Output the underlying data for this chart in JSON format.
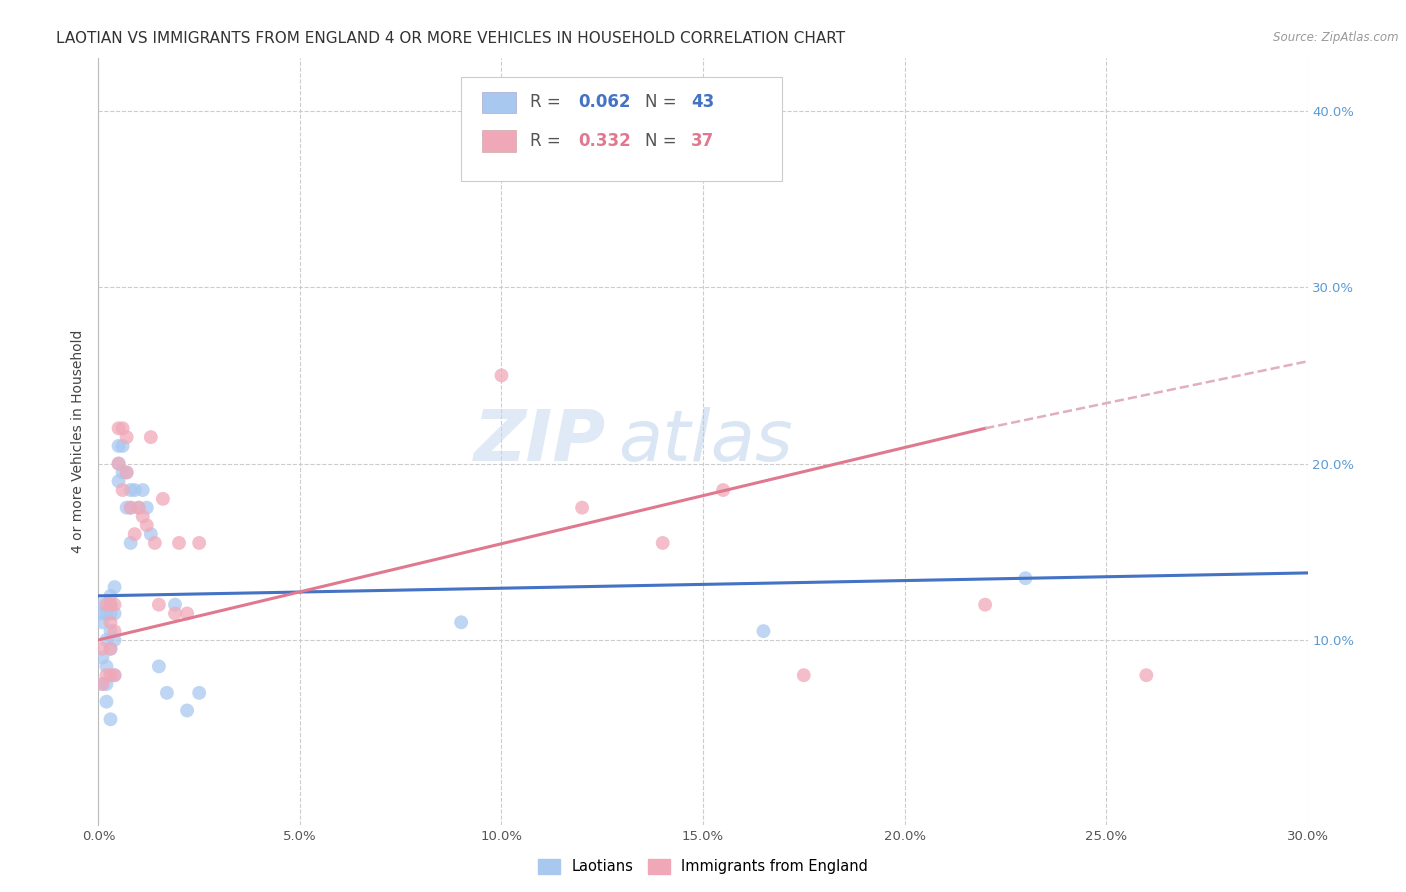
{
  "title": "LAOTIAN VS IMMIGRANTS FROM ENGLAND 4 OR MORE VEHICLES IN HOUSEHOLD CORRELATION CHART",
  "source": "Source: ZipAtlas.com",
  "ylabel": "4 or more Vehicles in Household",
  "xlim": [
    0.0,
    0.3
  ],
  "ylim": [
    -0.005,
    0.43
  ],
  "xticks": [
    0.0,
    0.05,
    0.1,
    0.15,
    0.2,
    0.25,
    0.3
  ],
  "yticks_right": [
    0.1,
    0.2,
    0.3,
    0.4
  ],
  "ytick_labels_right": [
    "10.0%",
    "20.0%",
    "30.0%",
    "40.0%"
  ],
  "xtick_labels": [
    "0.0%",
    "5.0%",
    "10.0%",
    "15.0%",
    "20.0%",
    "25.0%",
    "30.0%"
  ],
  "background_color": "#ffffff",
  "grid_color": "#cccccc",
  "laotian_color": "#a8c8f0",
  "england_color": "#f0a8b8",
  "laotian_R": 0.062,
  "laotian_N": 43,
  "england_R": 0.332,
  "england_N": 37,
  "laotian_line_color": "#4472c4",
  "england_line_color": "#e07890",
  "england_dashed_color": "#e0b0bc",
  "watermark_zip": "ZIP",
  "watermark_atlas": "atlas",
  "legend_label_laotian": "Laotians",
  "legend_label_england": "Immigrants from England",
  "laotian_x": [
    0.001,
    0.001,
    0.001,
    0.001,
    0.001,
    0.002,
    0.002,
    0.002,
    0.002,
    0.002,
    0.003,
    0.003,
    0.003,
    0.003,
    0.003,
    0.003,
    0.004,
    0.004,
    0.004,
    0.004,
    0.005,
    0.005,
    0.005,
    0.006,
    0.006,
    0.007,
    0.007,
    0.008,
    0.008,
    0.008,
    0.009,
    0.01,
    0.011,
    0.012,
    0.013,
    0.015,
    0.017,
    0.019,
    0.022,
    0.025,
    0.09,
    0.165,
    0.23
  ],
  "laotian_y": [
    0.12,
    0.115,
    0.11,
    0.09,
    0.075,
    0.115,
    0.1,
    0.085,
    0.075,
    0.065,
    0.125,
    0.12,
    0.115,
    0.105,
    0.095,
    0.055,
    0.13,
    0.115,
    0.1,
    0.08,
    0.21,
    0.2,
    0.19,
    0.21,
    0.195,
    0.195,
    0.175,
    0.185,
    0.175,
    0.155,
    0.185,
    0.175,
    0.185,
    0.175,
    0.16,
    0.085,
    0.07,
    0.12,
    0.06,
    0.07,
    0.11,
    0.105,
    0.135
  ],
  "england_x": [
    0.001,
    0.001,
    0.002,
    0.002,
    0.003,
    0.003,
    0.003,
    0.003,
    0.004,
    0.004,
    0.004,
    0.005,
    0.005,
    0.006,
    0.006,
    0.007,
    0.007,
    0.008,
    0.009,
    0.01,
    0.011,
    0.012,
    0.013,
    0.014,
    0.015,
    0.016,
    0.019,
    0.02,
    0.022,
    0.025,
    0.1,
    0.12,
    0.14,
    0.155,
    0.175,
    0.22,
    0.26
  ],
  "england_y": [
    0.095,
    0.075,
    0.12,
    0.08,
    0.12,
    0.11,
    0.095,
    0.08,
    0.12,
    0.105,
    0.08,
    0.22,
    0.2,
    0.22,
    0.185,
    0.215,
    0.195,
    0.175,
    0.16,
    0.175,
    0.17,
    0.165,
    0.215,
    0.155,
    0.12,
    0.18,
    0.115,
    0.155,
    0.115,
    0.155,
    0.25,
    0.175,
    0.155,
    0.185,
    0.08,
    0.12,
    0.08
  ],
  "title_fontsize": 11,
  "axis_label_fontsize": 10,
  "tick_fontsize": 9.5,
  "watermark_fontsize_zip": 52,
  "watermark_fontsize_atlas": 52
}
